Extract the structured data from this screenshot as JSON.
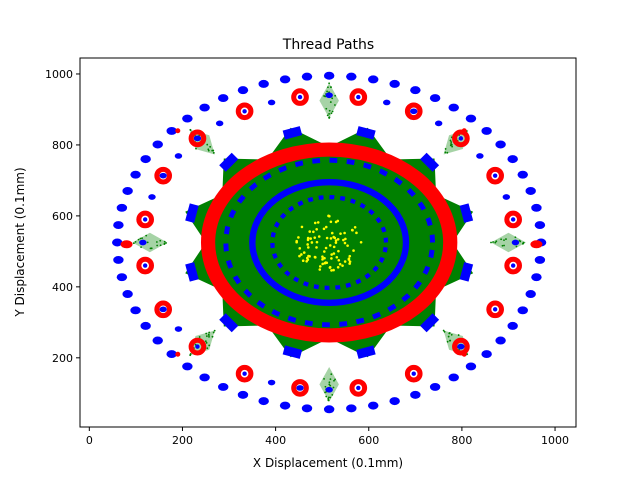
{
  "chart_data": {
    "type": "scatter",
    "title": "Thread Paths",
    "xlabel": "X Displacement (0.1mm)",
    "ylabel": "Y Displacement (0.1mm)",
    "xlim": [
      -20,
      1045
    ],
    "ylim": [
      5,
      1045
    ],
    "xticks": [
      0,
      200,
      400,
      600,
      800,
      1000
    ],
    "yticks": [
      200,
      400,
      600,
      800,
      1000
    ],
    "grid": false,
    "legend": "none",
    "center": [
      515,
      525
    ],
    "colors": {
      "blue": "#0000ff",
      "red": "#ff0000",
      "green": "#008000",
      "yellow": "#ffff00"
    },
    "series": [
      {
        "color": "blue",
        "elements": [
          {
            "shape": "ring",
            "rx": 455,
            "ry": 470,
            "count": 60,
            "marker": 7
          },
          {
            "shape": "ring",
            "rx": 400,
            "ry": 415,
            "count": 40,
            "marker": 5,
            "sparse": true
          },
          {
            "shape": "thick-ring",
            "rx": 165,
            "ry": 170,
            "width": 18
          },
          {
            "shape": "dashed-ring",
            "rx": 222,
            "ry": 232,
            "count": 34,
            "width": 14
          },
          {
            "shape": "dashed-ring",
            "rx": 122,
            "ry": 128,
            "count": 30,
            "width": 12
          },
          {
            "shape": "blocks",
            "rx": 305,
            "ry": 320,
            "count": 12,
            "offset_deg": 15,
            "size": [
              38,
              26
            ]
          }
        ]
      },
      {
        "color": "red",
        "elements": [
          {
            "shape": "thick-ring",
            "rx": 260,
            "ry": 262,
            "width": 40
          },
          {
            "shape": "rosettes",
            "rx": 400,
            "ry": 415,
            "count": 20,
            "offset_deg": 9,
            "radius": 16,
            "skip_deg": [
              0,
              180
            ]
          },
          {
            "shape": "ovals",
            "points": [
              [
                80,
                520
              ],
              [
                960,
                520
              ]
            ]
          },
          {
            "shape": "dots",
            "points": [
              [
                190,
                840
              ],
              [
                805,
                840
              ],
              [
                190,
                210
              ],
              [
                805,
                210
              ]
            ]
          }
        ]
      },
      {
        "color": "green",
        "elements": [
          {
            "shape": "star",
            "points": 12,
            "outer_rx": 320,
            "outer_ry": 335,
            "inner_rx": 265,
            "inner_ry": 270
          },
          {
            "shape": "diamonds",
            "rx": 385,
            "ry": 400,
            "count": 8,
            "offset_deg": 0,
            "size": [
              75,
              55
            ]
          }
        ]
      },
      {
        "color": "yellow",
        "elements": [
          {
            "shape": "cluster",
            "rx": 75,
            "ry": 80,
            "count": 90
          }
        ]
      }
    ]
  }
}
